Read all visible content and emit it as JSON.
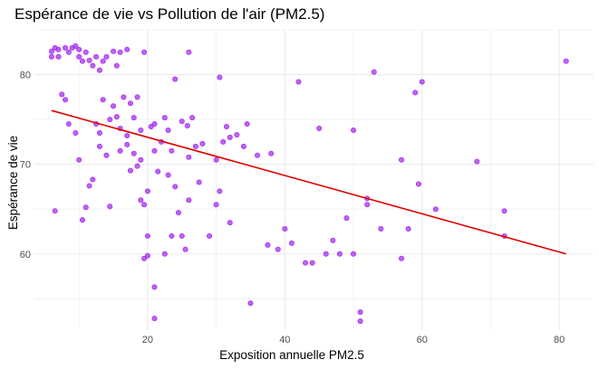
{
  "title": "Espérance de vie vs Pollution de l'air (PM2.5)",
  "colors": {
    "point": "#a020f0",
    "trend": "#e00000",
    "grid": "#ebebeb"
  },
  "chart_data": {
    "type": "scatter",
    "title": "Espérance de vie vs Pollution de l'air (PM2.5)",
    "xlabel": "Exposition annuelle PM2.5",
    "ylabel": "Espérance de vie",
    "xlim": [
      3.5,
      85
    ],
    "ylim": [
      51.5,
      85
    ],
    "xticks": [
      20,
      40,
      60,
      80
    ],
    "yticks": [
      60,
      70,
      80
    ],
    "grid": true,
    "legend": "none",
    "trend_line": {
      "x": [
        6,
        81
      ],
      "y": [
        76.0,
        60.0
      ]
    },
    "points": [
      [
        6,
        82
      ],
      [
        6,
        82.6
      ],
      [
        6.5,
        83
      ],
      [
        7,
        82
      ],
      [
        7,
        82.8
      ],
      [
        8,
        83
      ],
      [
        8.5,
        82.5
      ],
      [
        9,
        83
      ],
      [
        9.5,
        83.2
      ],
      [
        10,
        82.8
      ],
      [
        10,
        82
      ],
      [
        10.5,
        81.5
      ],
      [
        11,
        82.5
      ],
      [
        11.5,
        81.6
      ],
      [
        12,
        81
      ],
      [
        12.5,
        82
      ],
      [
        13,
        80.5
      ],
      [
        13.5,
        81.5
      ],
      [
        14,
        82
      ],
      [
        15,
        82.6
      ],
      [
        15.5,
        81
      ],
      [
        16,
        82.5
      ],
      [
        17,
        82.8
      ],
      [
        19.5,
        82.5
      ],
      [
        6.5,
        64.8
      ],
      [
        7.5,
        77.8
      ],
      [
        8,
        77.2
      ],
      [
        8.5,
        74.5
      ],
      [
        9.5,
        73.5
      ],
      [
        10,
        70.5
      ],
      [
        10.5,
        63.8
      ],
      [
        11,
        65.2
      ],
      [
        11.5,
        67.6
      ],
      [
        12,
        68.3
      ],
      [
        12.5,
        74.5
      ],
      [
        13,
        72
      ],
      [
        13,
        73.5
      ],
      [
        13.5,
        77.2
      ],
      [
        14,
        71
      ],
      [
        14.5,
        75
      ],
      [
        14.5,
        65.3
      ],
      [
        15,
        76.5
      ],
      [
        15.5,
        75.3
      ],
      [
        16,
        74
      ],
      [
        16,
        71.5
      ],
      [
        16.5,
        77.5
      ],
      [
        17,
        73.2
      ],
      [
        17,
        72.2
      ],
      [
        17.5,
        76.8
      ],
      [
        17.5,
        69.3
      ],
      [
        18,
        75.2
      ],
      [
        18,
        71.2
      ],
      [
        18.5,
        77.5
      ],
      [
        18.5,
        69.8
      ],
      [
        19,
        73.8
      ],
      [
        19,
        70.5
      ],
      [
        19,
        66
      ],
      [
        19.5,
        65.5
      ],
      [
        20,
        67
      ],
      [
        20,
        62
      ],
      [
        20.5,
        74.2
      ],
      [
        21,
        74.5
      ],
      [
        21,
        71.5
      ],
      [
        21.5,
        69.2
      ],
      [
        22,
        72.5
      ],
      [
        22.5,
        75.2
      ],
      [
        23,
        68.8
      ],
      [
        23,
        73.8
      ],
      [
        23.5,
        71.5
      ],
      [
        23.5,
        62
      ],
      [
        24,
        67.5
      ],
      [
        24.5,
        64.6
      ],
      [
        25,
        74.8
      ],
      [
        25,
        62
      ],
      [
        25.5,
        60.5
      ],
      [
        26,
        66
      ],
      [
        26,
        70.8
      ],
      [
        26.5,
        75.2
      ],
      [
        27,
        72
      ],
      [
        27.5,
        68
      ],
      [
        28,
        72.3
      ],
      [
        29,
        62
      ],
      [
        30,
        65.5
      ],
      [
        30,
        70.5
      ],
      [
        31,
        72.5
      ],
      [
        31.5,
        74.2
      ],
      [
        32,
        73
      ],
      [
        33,
        73.3
      ],
      [
        34,
        72
      ],
      [
        34.5,
        74.5
      ],
      [
        22.5,
        60
      ],
      [
        21,
        56.3
      ],
      [
        21,
        52.8
      ],
      [
        19.5,
        59.5
      ],
      [
        20,
        59.8
      ],
      [
        24,
        79.5
      ],
      [
        26,
        82.5
      ],
      [
        30.5,
        79.7
      ],
      [
        35,
        54.5
      ],
      [
        36,
        71
      ],
      [
        37.5,
        61
      ],
      [
        38,
        71.2
      ],
      [
        39,
        60.5
      ],
      [
        40,
        62.8
      ],
      [
        41,
        61.2
      ],
      [
        42,
        79.2
      ],
      [
        43,
        59
      ],
      [
        44,
        59
      ],
      [
        45,
        74
      ],
      [
        46,
        60
      ],
      [
        47,
        61.5
      ],
      [
        48,
        60
      ],
      [
        49,
        64
      ],
      [
        50,
        73.8
      ],
      [
        50,
        60
      ],
      [
        51,
        53.5
      ],
      [
        51,
        52.5
      ],
      [
        52,
        65.5
      ],
      [
        53,
        80.3
      ],
      [
        54,
        62.8
      ],
      [
        57,
        70.5
      ],
      [
        57,
        59.5
      ],
      [
        58,
        62.8
      ],
      [
        59,
        78
      ],
      [
        59.5,
        67.8
      ],
      [
        60,
        79.2
      ],
      [
        62,
        65
      ],
      [
        68,
        70.3
      ],
      [
        72,
        62
      ],
      [
        72,
        64.8
      ],
      [
        81,
        81.5
      ],
      [
        52,
        66.2
      ],
      [
        30.5,
        67
      ],
      [
        32,
        63.5
      ],
      [
        25.8,
        74.3
      ]
    ]
  }
}
